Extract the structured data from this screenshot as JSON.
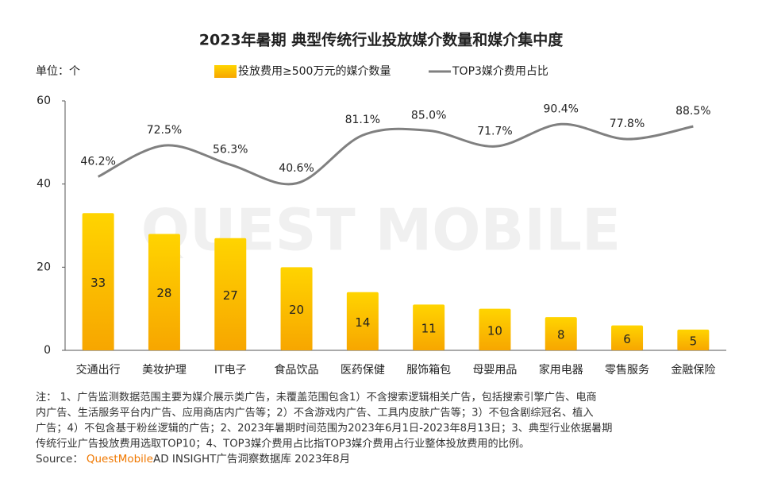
{
  "chart_data": {
    "type": "bar_line",
    "title": "2023年暑期 典型传统行业投放媒介数量和媒介集中度",
    "unit_label": "单位：个",
    "watermark": "QUEST MOBILE",
    "categories": [
      "交通出行",
      "美妆护理",
      "IT电子",
      "食品饮品",
      "医药保健",
      "服饰箱包",
      "母婴用品",
      "家用电器",
      "零售服务",
      "金融保险"
    ],
    "series": [
      {
        "name": "投放费用≥500万元的媒介数量",
        "type": "bar",
        "color": "#ffc000",
        "values": [
          33,
          28,
          27,
          20,
          14,
          11,
          10,
          8,
          6,
          5
        ]
      },
      {
        "name": "TOP3媒介费用占比",
        "type": "line",
        "axis": "y2",
        "color": "#808080",
        "values": [
          46.2,
          72.5,
          56.3,
          40.6,
          81.1,
          85.0,
          71.7,
          90.4,
          77.8,
          88.5
        ],
        "value_labels": [
          "46.2%",
          "72.5%",
          "56.3%",
          "40.6%",
          "81.1%",
          "85.0%",
          "71.7%",
          "90.4%",
          "77.8%",
          "88.5%"
        ]
      }
    ],
    "ylim": [
      0,
      60
    ],
    "yticks": [
      0,
      20,
      40,
      60
    ],
    "y2lim": [
      -100,
      110
    ],
    "notes": [
      "注：  1、广告监测数据范围主要为媒介展示类广告，未覆盖范围包含1）不含搜索逻辑相关广告，包括搜索引擎广告、电商",
      "内广告、生活服务平台内广告、应用商店内广告等；2）不含游戏内广告、工具内皮肤广告等；3）不包含剧综冠名、植入",
      "广告；4）不包含基于粉丝逻辑的广告；2、2023年暑期时间范围为2023年6月1日-2023年8月13日；3、典型行业依据暑期",
      "传统行业广告投放费用选取TOP10；4、TOP3媒介费用占比指TOP3媒介费用占行业整体投放费用的比例。"
    ],
    "source_label": "Source：",
    "source_brand": "QuestMobile",
    "source_text": "AD INSIGHT广告洞察数据库 2023年8月"
  }
}
